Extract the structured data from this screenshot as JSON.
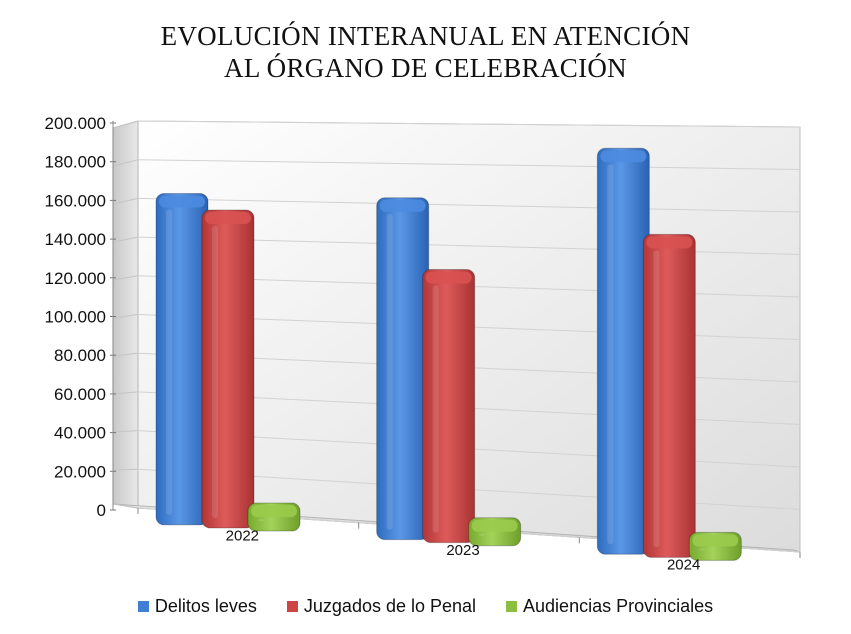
{
  "chart_data": {
    "type": "bar",
    "title_lines": [
      "EVOLUCIÓN INTERANUAL EN ATENCIÓN",
      "AL ÓRGANO DE CELEBRACIÓN"
    ],
    "categories": [
      "2022",
      "2023",
      "2024"
    ],
    "series": [
      {
        "name": "Delitos leves",
        "values": [
          163000,
          163000,
          189000
        ],
        "color": "#3f7fd4"
      },
      {
        "name": "Juzgados de lo Penal",
        "values": [
          155000,
          128000,
          148000
        ],
        "color": "#cc4444"
      },
      {
        "name": "Audiencias Provinciales",
        "values": [
          6000,
          3000,
          1000
        ],
        "color": "#8cbf3f"
      }
    ],
    "ylim": [
      0,
      200000
    ],
    "yticks": [
      "0",
      "20.000",
      "40.000",
      "60.000",
      "80.000",
      "100.000",
      "120.000",
      "140.000",
      "160.000",
      "180.000",
      "200.000"
    ],
    "legend_position": "bottom",
    "grid": true
  }
}
